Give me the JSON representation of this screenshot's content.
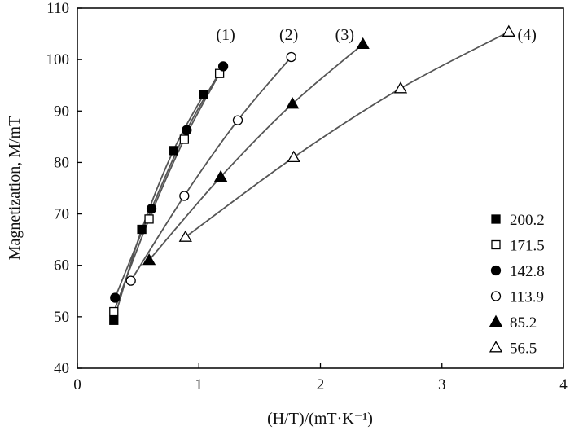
{
  "chart_data": {
    "type": "scatter",
    "xlabel": "(H/T)/(mT·K⁻¹)",
    "ylabel": "Magnetization, M/mT",
    "xlim": [
      0,
      4
    ],
    "ylim": [
      40,
      110
    ],
    "x_ticks": [
      0,
      1,
      2,
      3,
      4
    ],
    "y_ticks": [
      40,
      50,
      60,
      70,
      80,
      90,
      100,
      110
    ],
    "grid": false,
    "legend_position": "bottom-right",
    "series": [
      {
        "name": "200.2",
        "marker": "square-filled",
        "x": [
          0.3,
          0.53,
          0.79,
          1.04
        ],
        "y": [
          49.3,
          67.0,
          82.3,
          93.2
        ]
      },
      {
        "name": "171.5",
        "marker": "square-open",
        "x": [
          0.3,
          0.59,
          0.88,
          1.17
        ],
        "y": [
          51.0,
          69.0,
          84.5,
          97.3
        ]
      },
      {
        "name": "142.8",
        "marker": "circle-filled",
        "x": [
          0.31,
          0.61,
          0.9,
          1.2
        ],
        "y": [
          53.7,
          71.0,
          86.3,
          98.7
        ]
      },
      {
        "name": "113.9",
        "marker": "circle-open",
        "x": [
          0.44,
          0.88,
          1.32,
          1.76
        ],
        "y": [
          57.0,
          73.5,
          88.2,
          100.5
        ]
      },
      {
        "name": "85.2",
        "marker": "triangle-filled",
        "x": [
          0.59,
          1.18,
          1.77,
          2.35
        ],
        "y": [
          61.0,
          77.2,
          91.4,
          103.0
        ]
      },
      {
        "name": "56.5",
        "marker": "triangle-open",
        "x": [
          0.89,
          1.78,
          2.66,
          3.55
        ],
        "y": [
          65.5,
          81.0,
          94.4,
          105.4
        ]
      }
    ],
    "annotations": [
      {
        "text": "(1)",
        "x": 1.22,
        "y": 103.8
      },
      {
        "text": "(2)",
        "x": 1.74,
        "y": 103.8
      },
      {
        "text": "(3)",
        "x": 2.2,
        "y": 103.8
      },
      {
        "text": "(4)",
        "x": 3.7,
        "y": 103.8
      }
    ]
  }
}
